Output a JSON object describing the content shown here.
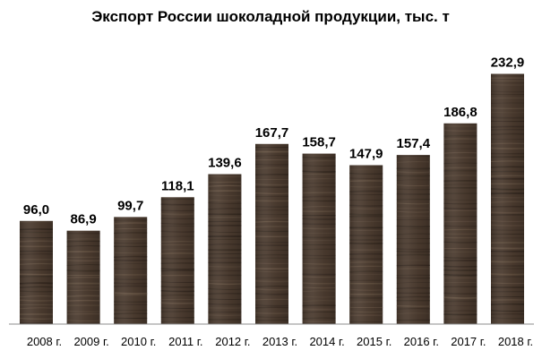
{
  "chart_data": {
    "type": "bar",
    "title": "Экспорт России шоколадной продукции, тыс. т",
    "xlabel": "",
    "ylabel": "",
    "categories": [
      "2008 г.",
      "2009 г.",
      "2010 г.",
      "2011 г.",
      "2012 г.",
      "2013 г.",
      "2014 г.",
      "2015 г.",
      "2016 г.",
      "2017 г.",
      "2018 г."
    ],
    "values": [
      96.0,
      86.9,
      99.7,
      118.1,
      139.6,
      167.7,
      158.7,
      147.9,
      157.4,
      186.8,
      232.9
    ],
    "data_labels": [
      "96,0",
      "86,9",
      "99,7",
      "118,1",
      "139,6",
      "167,7",
      "158,7",
      "147,9",
      "157,4",
      "186,8",
      "232,9"
    ],
    "ylim": [
      0,
      240
    ],
    "grid": false,
    "legend": "none",
    "colors": {
      "bar": "#4a3a2e",
      "bar_grain_dark": "#2f241c",
      "bar_grain_light": "#6b5847",
      "axis": "#8c8c8c",
      "text": "#000000"
    }
  }
}
